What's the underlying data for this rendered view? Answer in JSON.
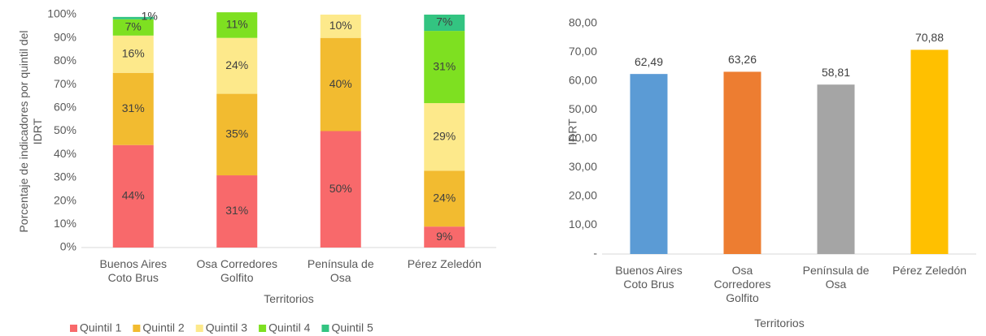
{
  "chart_data": [
    {
      "type": "stacked_bar",
      "y_label": "Porcentaje de indicadores  por quintil del\nIDRT",
      "x_label": "Territorios",
      "categories": [
        "Buenos Aires\nCoto Brus",
        "Osa Corredores\nGolfito",
        "Península de\nOsa",
        "Pérez Zeledón"
      ],
      "series": [
        {
          "name": "Quintil 1",
          "color": "#f8696b",
          "values": [
            44,
            31,
            50,
            9
          ],
          "value_labels": [
            "44%",
            "31%",
            "50%",
            "9%"
          ]
        },
        {
          "name": "Quintil 2",
          "color": "#f2bb30",
          "values": [
            31,
            35,
            40,
            24
          ],
          "value_labels": [
            "31%",
            "35%",
            "40%",
            "24%"
          ]
        },
        {
          "name": "Quintil 3",
          "color": "#fde98b",
          "values": [
            16,
            24,
            10,
            29
          ],
          "value_labels": [
            "16%",
            "24%",
            "10%",
            "29%"
          ]
        },
        {
          "name": "Quintil 4",
          "color": "#7ee021",
          "values": [
            7,
            11,
            null,
            31
          ],
          "value_labels": [
            "7%",
            "11%",
            null,
            "31%"
          ]
        },
        {
          "name": "Quintil 5",
          "color": "#33c481",
          "values": [
            1,
            null,
            null,
            7
          ],
          "value_labels": [
            "1%",
            null,
            null,
            "7%"
          ]
        }
      ],
      "ylim": [
        0,
        100
      ],
      "yticks": [
        {
          "value": 0,
          "label": "0%"
        },
        {
          "value": 10,
          "label": "10%"
        },
        {
          "value": 20,
          "label": "20%"
        },
        {
          "value": 30,
          "label": "30%"
        },
        {
          "value": 40,
          "label": "40%"
        },
        {
          "value": 50,
          "label": "50%"
        },
        {
          "value": 60,
          "label": "60%"
        },
        {
          "value": 70,
          "label": "70%"
        },
        {
          "value": 80,
          "label": "80%"
        },
        {
          "value": 90,
          "label": "90%"
        },
        {
          "value": 100,
          "label": "100%"
        }
      ],
      "legend": "bottom"
    },
    {
      "type": "bar",
      "y_label": "IDRT",
      "x_label": "Territorios",
      "categories": [
        "Buenos Aires\nCoto Brus",
        "Osa\nCorredores\nGolfito",
        "Península de\nOsa",
        "Pérez Zeledón"
      ],
      "values": [
        62.49,
        63.26,
        58.81,
        70.88
      ],
      "value_labels": [
        "62,49",
        "63,26",
        "58,81",
        "70,88"
      ],
      "colors": [
        "#5b9bd5",
        "#ed7d31",
        "#a5a5a5",
        "#ffc000"
      ],
      "ylim": [
        0,
        80
      ],
      "yticks": [
        {
          "value": 0,
          "label": "-"
        },
        {
          "value": 10,
          "label": "10,00"
        },
        {
          "value": 20,
          "label": "20,00"
        },
        {
          "value": 30,
          "label": "30,00"
        },
        {
          "value": 40,
          "label": "40,00"
        },
        {
          "value": 50,
          "label": "50,00"
        },
        {
          "value": 60,
          "label": "60,00"
        },
        {
          "value": 70,
          "label": "70,00"
        },
        {
          "value": 80,
          "label": "80,00"
        }
      ]
    }
  ]
}
